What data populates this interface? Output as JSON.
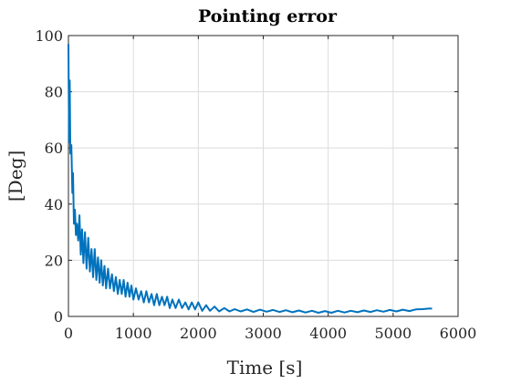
{
  "chart_data": {
    "type": "line",
    "title": "Pointing error",
    "xlabel": "Time [s]",
    "ylabel": "[Deg]",
    "xlim": [
      0,
      6000
    ],
    "ylim": [
      0,
      100
    ],
    "xticks": [
      "0",
      "1000",
      "2000",
      "3000",
      "4000",
      "5000",
      "6000"
    ],
    "yticks": [
      "0",
      "20",
      "40",
      "60",
      "80",
      "100"
    ],
    "grid": true,
    "legend": "none",
    "series_color": "#0072BD",
    "series": [
      {
        "x": [
          0,
          10,
          20,
          30,
          45,
          60,
          70,
          85,
          100,
          115,
          130,
          150,
          170,
          190,
          210,
          230,
          255,
          280,
          305,
          330,
          355,
          380,
          405,
          430,
          455,
          480,
          505,
          530,
          555,
          580,
          610,
          640,
          670,
          700,
          730,
          760,
          790,
          820,
          850,
          880,
          910,
          940,
          970,
          1000,
          1040,
          1080,
          1120,
          1160,
          1200,
          1240,
          1280,
          1320,
          1360,
          1400,
          1440,
          1480,
          1520,
          1560,
          1600,
          1650,
          1700,
          1750,
          1800,
          1850,
          1900,
          1950,
          2000,
          2060,
          2120,
          2180,
          2250,
          2320,
          2400,
          2480,
          2560,
          2650,
          2750,
          2850,
          2950,
          3050,
          3150,
          3250,
          3350,
          3450,
          3550,
          3650,
          3750,
          3850,
          3950,
          4050,
          4150,
          4250,
          4350,
          4450,
          4550,
          4650,
          4750,
          4850,
          4950,
          5050,
          5150,
          5250,
          5350,
          5450,
          5550,
          5600
        ],
        "y": [
          97,
          62,
          84,
          58,
          61,
          44,
          51,
          33,
          38,
          29,
          33,
          27,
          36,
          22,
          31,
          19,
          30,
          17,
          28,
          16,
          24,
          14,
          24,
          13,
          21,
          12,
          20,
          11,
          18,
          10,
          17,
          10,
          15,
          9,
          14,
          8,
          13,
          8,
          13,
          7,
          12,
          7,
          11,
          6,
          10,
          6,
          9,
          5,
          9,
          5,
          8,
          4,
          8,
          4,
          7,
          4,
          7,
          3,
          6,
          3,
          6,
          3,
          5,
          2.5,
          5,
          2.5,
          5,
          2,
          4,
          2,
          3.5,
          1.8,
          3,
          1.8,
          2.6,
          1.8,
          2.5,
          1.6,
          2.4,
          1.7,
          2.3,
          1.6,
          2.2,
          1.5,
          2.1,
          1.4,
          2,
          1.3,
          1.9,
          1.3,
          2,
          1.4,
          2,
          1.5,
          2.1,
          1.6,
          2.2,
          1.7,
          2.3,
          1.8,
          2.4,
          1.9,
          2.5,
          2.6,
          2.8,
          2.8
        ]
      }
    ]
  }
}
